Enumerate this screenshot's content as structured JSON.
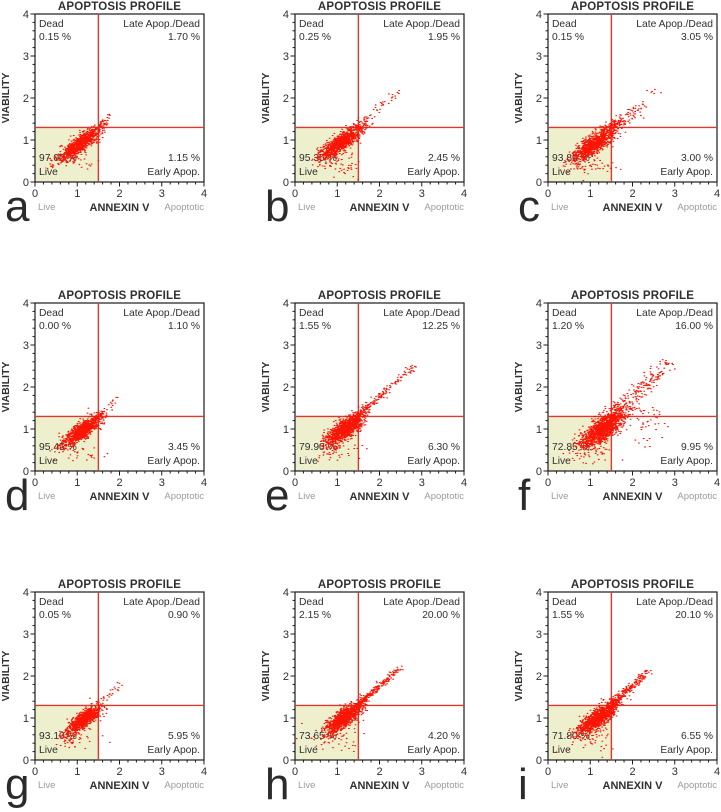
{
  "figure_title": "APOPTOSIS PROFILE flow-cytometry panel grid",
  "colors": {
    "point_red": "#f91405",
    "crosshair_red": "#dc382b",
    "live_quadrant_fill": "#edefcd",
    "frame_black": "#1c1c1c",
    "text_dark": "#303030",
    "text_gray": "#9b9b9b"
  },
  "chart_data": [
    {
      "type": "scatter",
      "panel_letter": "a",
      "title": "APOPTOSIS PROFILE",
      "xlabel": "ANNEXIN V",
      "ylabel": "VIABILITY",
      "x_axis_left_caption": "Live",
      "x_axis_right_caption": "Apoptotic",
      "xlim": [
        0,
        4
      ],
      "ylim": [
        0,
        4
      ],
      "x_ticks": [
        0,
        1,
        2,
        3,
        4
      ],
      "y_ticks": [
        0,
        1,
        2,
        3,
        4
      ],
      "crosshair": {
        "x": 1.5,
        "y": 1.3
      },
      "quadrants": {
        "dead_label": "Dead",
        "dead_pct": "0.15 %",
        "late_label": "Late Apop./Dead",
        "late_pct": "1.70 %",
        "live_label": "Live",
        "live_pct": "97.00 %",
        "early_label": "Early Apop.",
        "early_pct": "1.15 %"
      },
      "distribution": {
        "cluster": {
          "cx": 1.05,
          "cy": 0.9,
          "spread_along": 0.3,
          "spread_perp": 0.085,
          "n": 850
        },
        "streak": {
          "x0": 1.33,
          "y0": 1.12,
          "x1": 1.8,
          "y1": 1.6,
          "n": 40,
          "jitter": 0.05
        },
        "extras": [
          {
            "cx": 1.0,
            "cy": 0.5,
            "sx": 0.28,
            "sy": 0.13,
            "n": 30
          }
        ]
      }
    },
    {
      "type": "scatter",
      "panel_letter": "b",
      "title": "APOPTOSIS PROFILE",
      "xlabel": "ANNEXIN V",
      "ylabel": "VIABILITY",
      "x_axis_left_caption": "Live",
      "x_axis_right_caption": "Apoptotic",
      "xlim": [
        0,
        4
      ],
      "ylim": [
        0,
        4
      ],
      "x_ticks": [
        0,
        1,
        2,
        3,
        4
      ],
      "y_ticks": [
        0,
        1,
        2,
        3,
        4
      ],
      "crosshair": {
        "x": 1.5,
        "y": 1.3
      },
      "quadrants": {
        "dead_label": "Dead",
        "dead_pct": "0.25 %",
        "late_label": "Late Apop./Dead",
        "late_pct": "1.95 %",
        "live_label": "Live",
        "live_pct": "95.35 %",
        "early_label": "Early Apop.",
        "early_pct": "2.45 %"
      },
      "distribution": {
        "cluster": {
          "cx": 1.1,
          "cy": 0.95,
          "spread_along": 0.3,
          "spread_perp": 0.09,
          "n": 950
        },
        "streak": {
          "x0": 1.5,
          "y0": 1.3,
          "x1": 2.45,
          "y1": 2.18,
          "n": 55,
          "jitter": 0.04
        },
        "extras": [
          {
            "cx": 1.0,
            "cy": 0.45,
            "sx": 0.3,
            "sy": 0.15,
            "n": 50
          }
        ]
      }
    },
    {
      "type": "scatter",
      "panel_letter": "c",
      "title": "APOPTOSIS PROFILE",
      "xlabel": "ANNEXIN V",
      "ylabel": "VIABILITY",
      "x_axis_left_caption": "Live",
      "x_axis_right_caption": "Apoptotic",
      "xlim": [
        0,
        4
      ],
      "ylim": [
        0,
        4
      ],
      "x_ticks": [
        0,
        1,
        2,
        3,
        4
      ],
      "y_ticks": [
        0,
        1,
        2,
        3,
        4
      ],
      "crosshair": {
        "x": 1.5,
        "y": 1.3
      },
      "quadrants": {
        "dead_label": "Dead",
        "dead_pct": "0.15 %",
        "late_label": "Late Apop./Dead",
        "late_pct": "3.05 %",
        "live_label": "Live",
        "live_pct": "93.80 %",
        "early_label": "Early Apop.",
        "early_pct": "3.00 %"
      },
      "distribution": {
        "cluster": {
          "cx": 1.12,
          "cy": 0.93,
          "spread_along": 0.34,
          "spread_perp": 0.1,
          "n": 1000
        },
        "streak": {
          "x0": 1.5,
          "y0": 1.3,
          "x1": 2.3,
          "y1": 1.88,
          "n": 80,
          "jitter": 0.07
        },
        "extras": [
          {
            "cx": 2.5,
            "cy": 2.15,
            "sx": 0.12,
            "sy": 0.12,
            "n": 6
          },
          {
            "cx": 1.1,
            "cy": 0.38,
            "sx": 0.28,
            "sy": 0.12,
            "n": 40
          }
        ]
      }
    },
    {
      "type": "scatter",
      "panel_letter": "d",
      "title": "APOPTOSIS PROFILE",
      "xlabel": "ANNEXIN V",
      "ylabel": "VIABILITY",
      "x_axis_left_caption": "Live",
      "x_axis_right_caption": "Apoptotic",
      "xlim": [
        0,
        4
      ],
      "ylim": [
        0,
        4
      ],
      "x_ticks": [
        0,
        1,
        2,
        3,
        4
      ],
      "y_ticks": [
        0,
        1,
        2,
        3,
        4
      ],
      "crosshair": {
        "x": 1.5,
        "y": 1.3
      },
      "quadrants": {
        "dead_label": "Dead",
        "dead_pct": "0.00 %",
        "late_label": "Late Apop./Dead",
        "late_pct": "1.10 %",
        "live_label": "Live",
        "live_pct": "95.45 %",
        "early_label": "Early Apop.",
        "early_pct": "3.45 %"
      },
      "distribution": {
        "cluster": {
          "cx": 1.1,
          "cy": 0.95,
          "spread_along": 0.28,
          "spread_perp": 0.085,
          "n": 900
        },
        "streak": {
          "x0": 1.55,
          "y0": 1.35,
          "x1": 2.05,
          "y1": 1.8,
          "n": 18,
          "jitter": 0.04
        },
        "extras": [
          {
            "cx": 1.05,
            "cy": 0.42,
            "sx": 0.25,
            "sy": 0.1,
            "n": 25
          }
        ]
      }
    },
    {
      "type": "scatter",
      "panel_letter": "e",
      "title": "APOPTOSIS PROFILE",
      "xlabel": "ANNEXIN V",
      "ylabel": "VIABILITY",
      "x_axis_left_caption": "Live",
      "x_axis_right_caption": "Apoptotic",
      "xlim": [
        0,
        4
      ],
      "ylim": [
        0,
        4
      ],
      "x_ticks": [
        0,
        1,
        2,
        3,
        4
      ],
      "y_ticks": [
        0,
        1,
        2,
        3,
        4
      ],
      "crosshair": {
        "x": 1.5,
        "y": 1.3
      },
      "quadrants": {
        "dead_label": "Dead",
        "dead_pct": "1.55 %",
        "late_label": "Late Apop./Dead",
        "late_pct": "12.25 %",
        "live_label": "Live",
        "live_pct": "79.90 %",
        "early_label": "Early Apop.",
        "early_pct": "6.30 %"
      },
      "distribution": {
        "cluster": {
          "cx": 1.18,
          "cy": 1.0,
          "spread_along": 0.28,
          "spread_perp": 0.1,
          "n": 1050
        },
        "streak": {
          "x0": 1.45,
          "y0": 1.27,
          "x1": 2.85,
          "y1": 2.55,
          "n": 180,
          "jitter": 0.045
        },
        "extras": [
          {
            "cx": 1.1,
            "cy": 0.5,
            "sx": 0.3,
            "sy": 0.15,
            "n": 40
          }
        ]
      }
    },
    {
      "type": "scatter",
      "panel_letter": "f",
      "title": "APOPTOSIS PROFILE",
      "xlabel": "ANNEXIN V",
      "ylabel": "VIABILITY",
      "x_axis_left_caption": "Live",
      "x_axis_right_caption": "Apoptotic",
      "xlim": [
        0,
        4
      ],
      "ylim": [
        0,
        4
      ],
      "x_ticks": [
        0,
        1,
        2,
        3,
        4
      ],
      "y_ticks": [
        0,
        1,
        2,
        3,
        4
      ],
      "crosshair": {
        "x": 1.5,
        "y": 1.3
      },
      "quadrants": {
        "dead_label": "Dead",
        "dead_pct": "1.20 %",
        "late_label": "Late Apop./Dead",
        "late_pct": "16.00 %",
        "live_label": "Live",
        "live_pct": "72.85 %",
        "early_label": "Early Apop.",
        "early_pct": "9.95 %"
      },
      "distribution": {
        "cluster": {
          "cx": 1.3,
          "cy": 1.0,
          "spread_along": 0.34,
          "spread_perp": 0.12,
          "n": 1200
        },
        "streak": {
          "x0": 1.5,
          "y0": 1.3,
          "x1": 2.9,
          "y1": 2.6,
          "n": 230,
          "jitter": 0.1
        },
        "extras": [
          {
            "cx": 2.35,
            "cy": 1.15,
            "sx": 0.22,
            "sy": 0.28,
            "n": 45
          },
          {
            "cx": 1.1,
            "cy": 0.45,
            "sx": 0.3,
            "sy": 0.15,
            "n": 40
          }
        ]
      }
    },
    {
      "type": "scatter",
      "panel_letter": "g",
      "title": "APOPTOSIS PROFILE",
      "xlabel": "ANNEXIN V",
      "ylabel": "VIABILITY",
      "x_axis_left_caption": "Live",
      "x_axis_right_caption": "Apoptotic",
      "xlim": [
        0,
        4
      ],
      "ylim": [
        0,
        4
      ],
      "x_ticks": [
        0,
        1,
        2,
        3,
        4
      ],
      "y_ticks": [
        0,
        1,
        2,
        3,
        4
      ],
      "crosshair": {
        "x": 1.5,
        "y": 1.3
      },
      "quadrants": {
        "dead_label": "Dead",
        "dead_pct": "0.05 %",
        "late_label": "Late Apop./Dead",
        "late_pct": "0.90 %",
        "live_label": "Live",
        "live_pct": "93.10 %",
        "early_label": "Early Apop.",
        "early_pct": "5.95 %"
      },
      "distribution": {
        "cluster": {
          "cx": 1.15,
          "cy": 0.95,
          "spread_along": 0.24,
          "spread_perp": 0.08,
          "n": 950
        },
        "streak": {
          "x0": 1.55,
          "y0": 1.35,
          "x1": 2.05,
          "y1": 1.85,
          "n": 22,
          "jitter": 0.05
        },
        "extras": [
          {
            "cx": 1.0,
            "cy": 0.45,
            "sx": 0.28,
            "sy": 0.12,
            "n": 35
          }
        ]
      }
    },
    {
      "type": "scatter",
      "panel_letter": "h",
      "title": "APOPTOSIS PROFILE",
      "xlabel": "ANNEXIN V",
      "ylabel": "VIABILITY",
      "x_axis_left_caption": "Live",
      "x_axis_right_caption": "Apoptotic",
      "xlim": [
        0,
        4
      ],
      "ylim": [
        0,
        4
      ],
      "x_ticks": [
        0,
        1,
        2,
        3,
        4
      ],
      "y_ticks": [
        0,
        1,
        2,
        3,
        4
      ],
      "crosshair": {
        "x": 1.5,
        "y": 1.3
      },
      "quadrants": {
        "dead_label": "Dead",
        "dead_pct": "2.15 %",
        "late_label": "Late Apop./Dead",
        "late_pct": "20.00 %",
        "live_label": "Live",
        "live_pct": "73.65 %",
        "early_label": "Early Apop.",
        "early_pct": "4.20 %"
      },
      "distribution": {
        "cluster": {
          "cx": 1.15,
          "cy": 1.0,
          "spread_along": 0.26,
          "spread_perp": 0.09,
          "n": 1000
        },
        "streak": {
          "x0": 1.45,
          "y0": 1.28,
          "x1": 2.48,
          "y1": 2.2,
          "n": 250,
          "jitter": 0.04
        },
        "extras": [
          {
            "cx": 0.95,
            "cy": 0.5,
            "sx": 0.3,
            "sy": 0.15,
            "n": 45
          }
        ]
      }
    },
    {
      "type": "scatter",
      "panel_letter": "i",
      "title": "APOPTOSIS PROFILE",
      "xlabel": "ANNEXIN V",
      "ylabel": "VIABILITY",
      "x_axis_left_caption": "Live",
      "x_axis_right_caption": "Apoptotic",
      "xlim": [
        0,
        4
      ],
      "ylim": [
        0,
        4
      ],
      "x_ticks": [
        0,
        1,
        2,
        3,
        4
      ],
      "y_ticks": [
        0,
        1,
        2,
        3,
        4
      ],
      "crosshair": {
        "x": 1.5,
        "y": 1.3
      },
      "quadrants": {
        "dead_label": "Dead",
        "dead_pct": "1.55 %",
        "late_label": "Late Apop./Dead",
        "late_pct": "20.10 %",
        "live_label": "Live",
        "live_pct": "71.80 %",
        "early_label": "Early Apop.",
        "early_pct": "6.55 %"
      },
      "distribution": {
        "cluster": {
          "cx": 1.18,
          "cy": 1.0,
          "spread_along": 0.28,
          "spread_perp": 0.095,
          "n": 1000
        },
        "streak": {
          "x0": 1.45,
          "y0": 1.28,
          "x1": 2.35,
          "y1": 2.1,
          "n": 250,
          "jitter": 0.05
        },
        "extras": [
          {
            "cx": 1.0,
            "cy": 0.5,
            "sx": 0.3,
            "sy": 0.15,
            "n": 45
          }
        ]
      }
    }
  ]
}
